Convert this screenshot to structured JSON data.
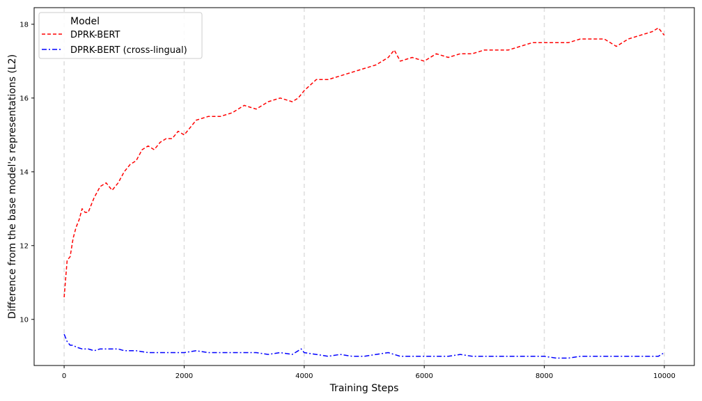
{
  "chart_data": {
    "type": "line",
    "title": "",
    "xlabel": "Training Steps",
    "ylabel": "Difference from the base model's representations (L2)",
    "xlim": [
      -500,
      10500
    ],
    "ylim": [
      8.75,
      18.45
    ],
    "xticks": [
      0,
      2000,
      4000,
      6000,
      8000,
      10000
    ],
    "yticks": [
      10,
      12,
      14,
      16,
      18
    ],
    "grid": "vertical dashed at x ticks",
    "legend": {
      "title": "Model",
      "position": "top-left"
    },
    "series": [
      {
        "name": "DPRK-BERT",
        "color": "#ff0000",
        "style": "dashed",
        "x": [
          0,
          50,
          100,
          150,
          200,
          250,
          300,
          350,
          400,
          500,
          600,
          700,
          800,
          900,
          1000,
          1100,
          1200,
          1300,
          1400,
          1500,
          1600,
          1700,
          1800,
          1900,
          2000,
          2200,
          2400,
          2600,
          2800,
          3000,
          3200,
          3400,
          3600,
          3800,
          3900,
          4000,
          4200,
          4400,
          4600,
          4800,
          5000,
          5200,
          5400,
          5500,
          5600,
          5800,
          6000,
          6200,
          6400,
          6600,
          6800,
          7000,
          7200,
          7400,
          7600,
          7800,
          8000,
          8200,
          8400,
          8600,
          8800,
          9000,
          9200,
          9400,
          9600,
          9800,
          9900,
          10000
        ],
        "values": [
          10.6,
          11.6,
          11.7,
          12.2,
          12.5,
          12.7,
          13.0,
          12.9,
          12.9,
          13.3,
          13.6,
          13.7,
          13.5,
          13.7,
          14.0,
          14.2,
          14.3,
          14.6,
          14.7,
          14.6,
          14.8,
          14.9,
          14.9,
          15.1,
          15.0,
          15.4,
          15.5,
          15.5,
          15.6,
          15.8,
          15.7,
          15.9,
          16.0,
          15.9,
          16.0,
          16.2,
          16.5,
          16.5,
          16.6,
          16.7,
          16.8,
          16.9,
          17.1,
          17.3,
          17.0,
          17.1,
          17.0,
          17.2,
          17.1,
          17.2,
          17.2,
          17.3,
          17.3,
          17.3,
          17.4,
          17.5,
          17.5,
          17.5,
          17.5,
          17.6,
          17.6,
          17.6,
          17.4,
          17.6,
          17.7,
          17.8,
          17.9,
          17.7
        ]
      },
      {
        "name": "DPRK-BERT (cross-lingual)",
        "color": "#0000ff",
        "style": "dashdot",
        "x": [
          0,
          50,
          100,
          150,
          200,
          300,
          400,
          500,
          600,
          700,
          800,
          900,
          1000,
          1200,
          1400,
          1600,
          1800,
          2000,
          2200,
          2400,
          2600,
          2800,
          3000,
          3200,
          3400,
          3600,
          3800,
          3950,
          4000,
          4200,
          4400,
          4600,
          4800,
          5000,
          5200,
          5400,
          5600,
          5800,
          6000,
          6200,
          6400,
          6600,
          6800,
          7000,
          7200,
          7400,
          7600,
          7800,
          8000,
          8200,
          8400,
          8600,
          8800,
          9000,
          9200,
          9400,
          9600,
          9800,
          9900,
          10000
        ],
        "values": [
          9.6,
          9.4,
          9.3,
          9.3,
          9.25,
          9.2,
          9.2,
          9.15,
          9.2,
          9.2,
          9.2,
          9.2,
          9.15,
          9.15,
          9.1,
          9.1,
          9.1,
          9.1,
          9.15,
          9.1,
          9.1,
          9.1,
          9.1,
          9.1,
          9.05,
          9.1,
          9.05,
          9.2,
          9.1,
          9.05,
          9.0,
          9.05,
          9.0,
          9.0,
          9.05,
          9.1,
          9.0,
          9.0,
          9.0,
          9.0,
          9.0,
          9.05,
          9.0,
          9.0,
          9.0,
          9.0,
          9.0,
          9.0,
          9.0,
          8.95,
          8.95,
          9.0,
          9.0,
          9.0,
          9.0,
          9.0,
          9.0,
          9.0,
          9.0,
          9.1
        ]
      }
    ]
  }
}
